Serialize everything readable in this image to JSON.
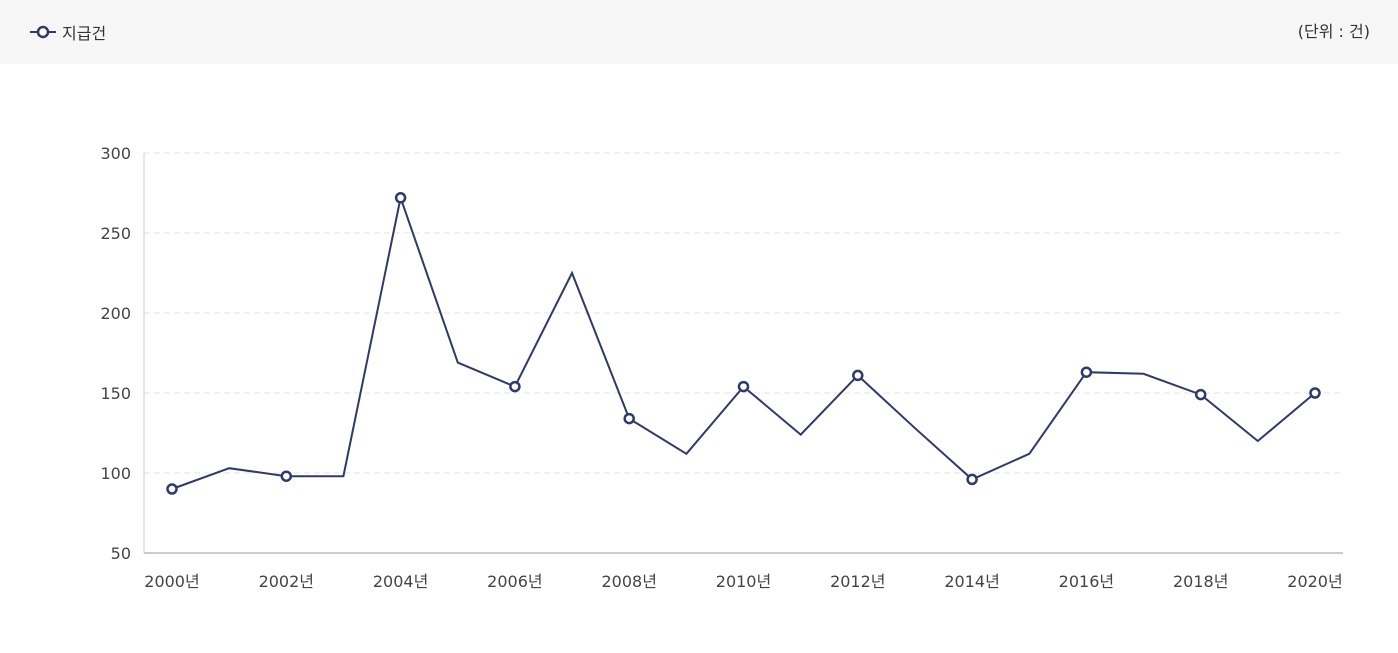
{
  "header": {
    "legend_label": "지급건",
    "unit_label": "(단위 : 건)"
  },
  "colors": {
    "series": "#2e3a6b",
    "header_bg": "#f6f6f6",
    "grid": "#e3e3e3"
  },
  "chart_data": {
    "type": "line",
    "x": [
      2000,
      2001,
      2002,
      2003,
      2004,
      2005,
      2006,
      2007,
      2008,
      2009,
      2010,
      2011,
      2012,
      2013,
      2014,
      2015,
      2016,
      2017,
      2018,
      2019,
      2020
    ],
    "series": [
      {
        "name": "지급건",
        "values": [
          90,
          103,
          98,
          98,
          272,
          169,
          154,
          225,
          134,
          112,
          154,
          124,
          161,
          128,
          96,
          112,
          163,
          162,
          149,
          120,
          150
        ],
        "markers_at": [
          2000,
          2002,
          2004,
          2006,
          2008,
          2010,
          2012,
          2014,
          2016,
          2018,
          2020
        ]
      }
    ],
    "x_tick_labels": [
      "2000년",
      "2002년",
      "2004년",
      "2006년",
      "2008년",
      "2010년",
      "2012년",
      "2014년",
      "2016년",
      "2018년",
      "2020년"
    ],
    "y_ticks": [
      50,
      100,
      150,
      200,
      250,
      300
    ],
    "ylim": [
      50,
      300
    ],
    "grid": "horizontal-dashed",
    "legend": "top-left"
  }
}
